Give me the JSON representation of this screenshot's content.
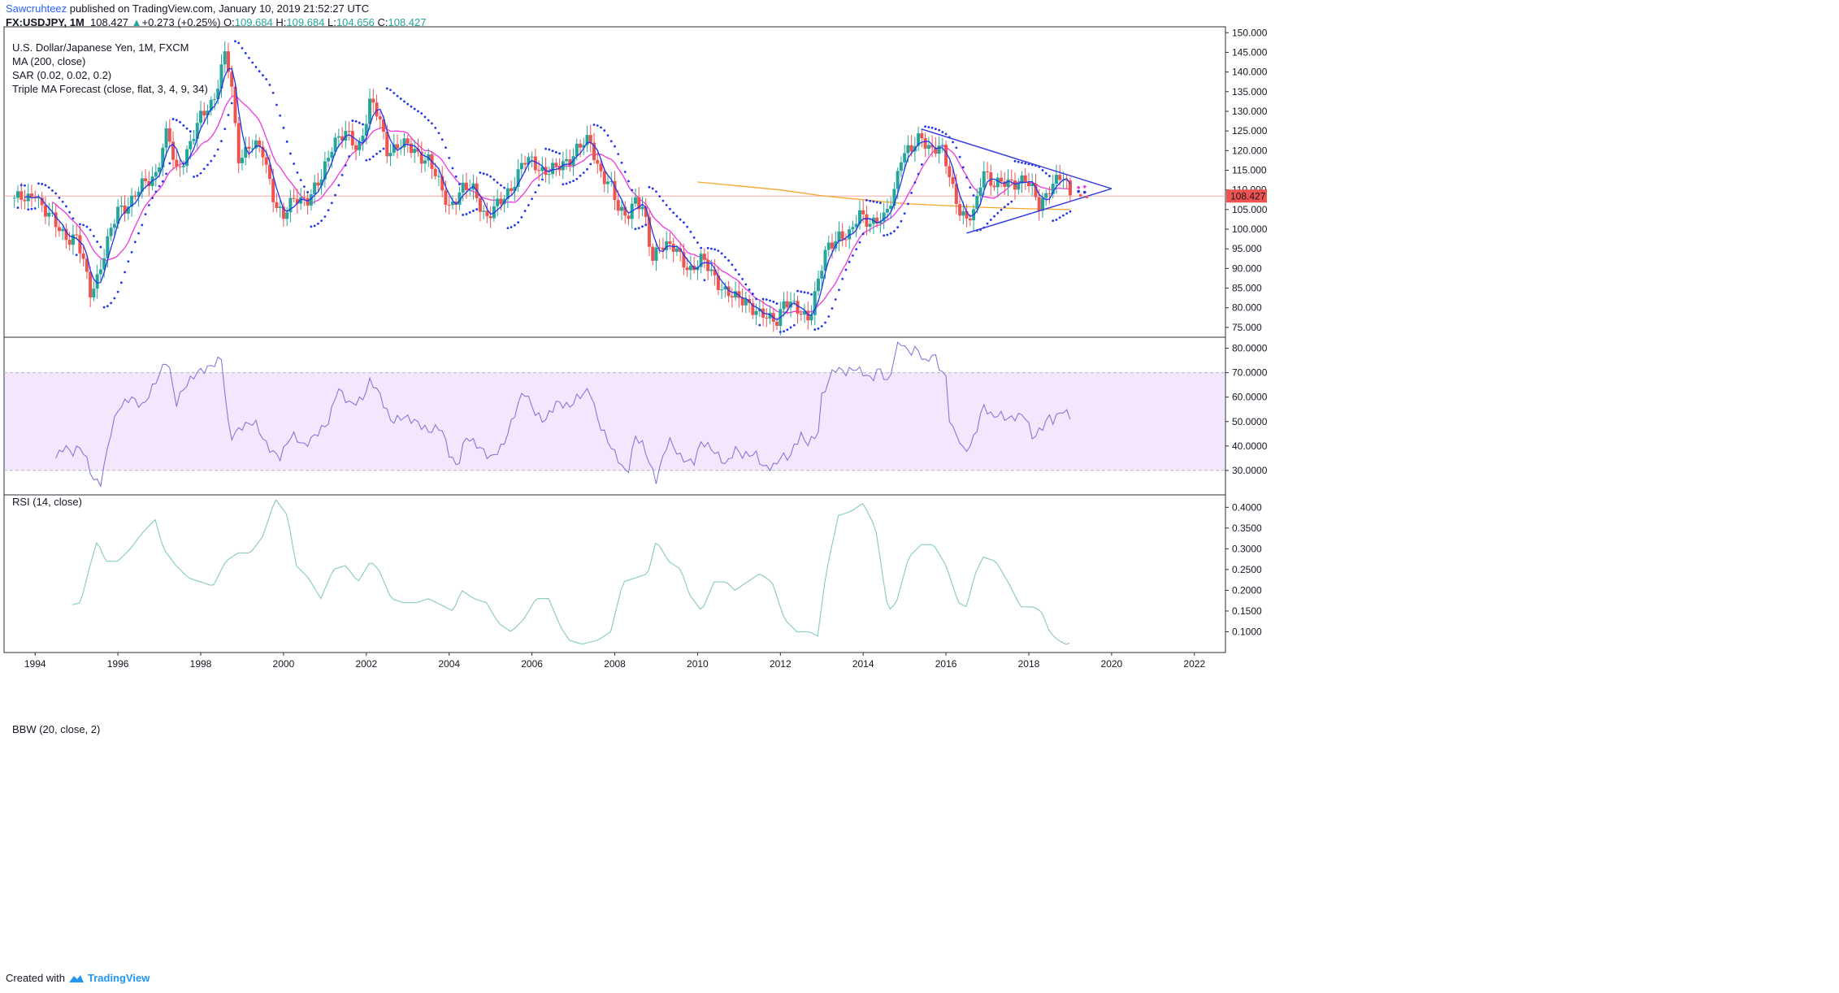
{
  "header": {
    "author": "Sawcruhteez",
    "published": " published on TradingView.com, January 10, 2019 21:52:27 UTC",
    "symbol": "FX:USDJPY, 1M",
    "last": "108.427",
    "change_arrow": "▲",
    "change": "+0.273 (+0.25%)",
    "open_label": "O:",
    "open": "109.684",
    "high_label": "H:",
    "high": "109.684",
    "low_label": "L:",
    "low": "104.656",
    "close_label": "C:",
    "close": "108.427"
  },
  "legend": {
    "title": "U.S. Dollar/Japanese Yen, 1M, FXCM",
    "ma": "MA (200, close)",
    "sar": "SAR (0.02, 0.02, 0.2)",
    "forecast": "Triple MA Forecast (close, flat, 3, 4, 9, 34)",
    "rsi": "RSI (14, close)",
    "bbw": "BBW (20, close, 2)"
  },
  "footer": {
    "created": "Created with",
    "brand": "TradingView"
  },
  "colors": {
    "up": "#26a69a",
    "down": "#ef5350",
    "ma200": "#f7a52b",
    "ma_fast": "#2136e8",
    "ma_slow": "#ee37e0",
    "sar": "#2136e8",
    "rsi": "#7b6fd6",
    "rsi_band": "#f3e6fd",
    "bbw": "#8dcdc4",
    "triangle": "#3a3fe0",
    "price_tag": "#ef5350"
  },
  "chart_data": [
    {
      "type": "candlestick",
      "title": "U.S. Dollar/Japanese Yen, 1M, FXCM",
      "x_ticks": [
        "1994",
        "1996",
        "1998",
        "2000",
        "2002",
        "2004",
        "2006",
        "2008",
        "2010",
        "2012",
        "2014",
        "2016",
        "2018",
        "2020",
        "2022"
      ],
      "y_ticks": [
        "150.000",
        "145.000",
        "140.000",
        "135.000",
        "130.000",
        "125.000",
        "120.000",
        "115.000",
        "110.000",
        "105.000",
        "100.000",
        "95.000",
        "90.000",
        "85.000",
        "80.000",
        "75.000"
      ],
      "ylim": [
        72.5,
        151.5
      ],
      "xlim": [
        1993.25,
        2022.75
      ],
      "last_price_label": "108.427",
      "close_anchors": [
        [
          1993.5,
          108
        ],
        [
          1993.8,
          107
        ],
        [
          1994.0,
          110
        ],
        [
          1994.2,
          105
        ],
        [
          1994.5,
          101
        ],
        [
          1994.8,
          98
        ],
        [
          1995.0,
          97.5
        ],
        [
          1995.2,
          90
        ],
        [
          1995.33,
          84
        ],
        [
          1995.5,
          88
        ],
        [
          1995.8,
          98
        ],
        [
          1996.0,
          105
        ],
        [
          1996.3,
          107
        ],
        [
          1996.6,
          111
        ],
        [
          1996.9,
          114
        ],
        [
          1997.2,
          125
        ],
        [
          1997.4,
          114
        ],
        [
          1997.7,
          121
        ],
        [
          1998.0,
          128
        ],
        [
          1998.3,
          133
        ],
        [
          1998.6,
          145
        ],
        [
          1998.75,
          135
        ],
        [
          1998.9,
          118
        ],
        [
          1999.2,
          122
        ],
        [
          1999.5,
          119
        ],
        [
          1999.8,
          107
        ],
        [
          2000.0,
          103
        ],
        [
          2000.3,
          108
        ],
        [
          2000.6,
          108
        ],
        [
          2000.9,
          112
        ],
        [
          2001.2,
          123
        ],
        [
          2001.5,
          124
        ],
        [
          2001.8,
          120
        ],
        [
          2002.1,
          133
        ],
        [
          2002.3,
          128
        ],
        [
          2002.5,
          120
        ],
        [
          2002.8,
          122
        ],
        [
          2003.1,
          120
        ],
        [
          2003.5,
          118
        ],
        [
          2003.8,
          110
        ],
        [
          2004.0,
          106
        ],
        [
          2004.3,
          110
        ],
        [
          2004.6,
          110
        ],
        [
          2004.9,
          103
        ],
        [
          2005.2,
          106
        ],
        [
          2005.5,
          111
        ],
        [
          2005.8,
          117
        ],
        [
          2006.0,
          117
        ],
        [
          2006.3,
          115
        ],
        [
          2006.6,
          115
        ],
        [
          2006.9,
          118
        ],
        [
          2007.1,
          121
        ],
        [
          2007.4,
          122
        ],
        [
          2007.6,
          116
        ],
        [
          2007.9,
          111
        ],
        [
          2008.1,
          104
        ],
        [
          2008.3,
          104
        ],
        [
          2008.5,
          108
        ],
        [
          2008.7,
          104
        ],
        [
          2008.9,
          92
        ],
        [
          2009.1,
          97
        ],
        [
          2009.4,
          95
        ],
        [
          2009.8,
          90
        ],
        [
          2010.1,
          92
        ],
        [
          2010.4,
          88
        ],
        [
          2010.7,
          84
        ],
        [
          2010.9,
          82
        ],
        [
          2011.2,
          82
        ],
        [
          2011.5,
          78
        ],
        [
          2011.7,
          77
        ],
        [
          2011.9,
          77
        ],
        [
          2012.1,
          82
        ],
        [
          2012.4,
          79
        ],
        [
          2012.7,
          78
        ],
        [
          2012.9,
          86
        ],
        [
          2013.1,
          94
        ],
        [
          2013.4,
          99
        ],
        [
          2013.7,
          98
        ],
        [
          2013.9,
          104
        ],
        [
          2014.2,
          102
        ],
        [
          2014.5,
          102
        ],
        [
          2014.75,
          110
        ],
        [
          2014.9,
          119
        ],
        [
          2015.2,
          120
        ],
        [
          2015.4,
          124
        ],
        [
          2015.6,
          121
        ],
        [
          2015.9,
          120
        ],
        [
          2016.1,
          113
        ],
        [
          2016.3,
          106
        ],
        [
          2016.5,
          102
        ],
        [
          2016.7,
          104
        ],
        [
          2016.9,
          116
        ],
        [
          2017.1,
          112
        ],
        [
          2017.3,
          111
        ],
        [
          2017.6,
          112
        ],
        [
          2017.9,
          113
        ],
        [
          2018.1,
          109
        ],
        [
          2018.25,
          106
        ],
        [
          2018.5,
          111
        ],
        [
          2018.8,
          113
        ],
        [
          2018.95,
          110
        ],
        [
          2019.05,
          108.4
        ]
      ],
      "ma200_anchors": [
        [
          2010.0,
          112
        ],
        [
          2011.0,
          111
        ],
        [
          2012.0,
          110
        ],
        [
          2013.0,
          108.5
        ],
        [
          2014.0,
          107.5
        ],
        [
          2015.0,
          106.5
        ],
        [
          2016.0,
          106
        ],
        [
          2017.0,
          105.5
        ],
        [
          2018.0,
          105.2
        ],
        [
          2019.0,
          105
        ]
      ],
      "triangle": {
        "apex": [
          2020.0,
          110.3
        ],
        "upper_start": [
          2015.4,
          125.5
        ],
        "lower_start": [
          2016.5,
          99.0
        ]
      },
      "forecast_dots": [
        [
          2019.2,
          110.6
        ],
        [
          2019.35,
          110.8
        ],
        [
          2019.2,
          109.6
        ],
        [
          2019.35,
          109.4
        ],
        [
          2019.25,
          108.6
        ],
        [
          2019.4,
          108.2
        ]
      ]
    },
    {
      "type": "line",
      "title": "RSI (14, close)",
      "y_ticks": [
        "80.0000",
        "70.0000",
        "60.0000",
        "50.0000",
        "40.0000",
        "30.0000"
      ],
      "ylim": [
        20,
        84.5
      ],
      "band": [
        30,
        70
      ],
      "anchors": [
        [
          1994.5,
          35
        ],
        [
          1994.7,
          40
        ],
        [
          1994.9,
          37
        ],
        [
          1995.1,
          40
        ],
        [
          1995.3,
          32
        ],
        [
          1995.4,
          26
        ],
        [
          1995.6,
          25
        ],
        [
          1995.8,
          44
        ],
        [
          1996.0,
          55
        ],
        [
          1996.3,
          60
        ],
        [
          1996.6,
          56
        ],
        [
          1996.9,
          66
        ],
        [
          1997.2,
          76
        ],
        [
          1997.4,
          57
        ],
        [
          1997.6,
          64
        ],
        [
          1997.9,
          70
        ],
        [
          1998.2,
          72
        ],
        [
          1998.5,
          76
        ],
        [
          1998.7,
          43
        ],
        [
          1999.0,
          48
        ],
        [
          1999.3,
          50
        ],
        [
          1999.6,
          40
        ],
        [
          1999.9,
          35
        ],
        [
          2000.2,
          45
        ],
        [
          2000.5,
          40
        ],
        [
          2000.8,
          45
        ],
        [
          2001.1,
          50
        ],
        [
          2001.3,
          64
        ],
        [
          2001.6,
          57
        ],
        [
          2001.9,
          59
        ],
        [
          2002.1,
          67
        ],
        [
          2002.3,
          62
        ],
        [
          2002.6,
          50
        ],
        [
          2002.9,
          52
        ],
        [
          2003.2,
          50
        ],
        [
          2003.5,
          46
        ],
        [
          2003.8,
          48
        ],
        [
          2004.0,
          37
        ],
        [
          2004.2,
          31
        ],
        [
          2004.4,
          44
        ],
        [
          2004.7,
          40
        ],
        [
          2005.0,
          35
        ],
        [
          2005.3,
          40
        ],
        [
          2005.6,
          54
        ],
        [
          2005.8,
          63
        ],
        [
          2006.1,
          53
        ],
        [
          2006.3,
          50
        ],
        [
          2006.6,
          58
        ],
        [
          2006.9,
          56
        ],
        [
          2007.1,
          60
        ],
        [
          2007.4,
          63
        ],
        [
          2007.6,
          50
        ],
        [
          2007.9,
          40
        ],
        [
          2008.1,
          34
        ],
        [
          2008.3,
          28
        ],
        [
          2008.5,
          44
        ],
        [
          2008.7,
          40
        ],
        [
          2008.9,
          30
        ],
        [
          2009.0,
          26
        ],
        [
          2009.3,
          43
        ],
        [
          2009.6,
          35
        ],
        [
          2009.9,
          33
        ],
        [
          2010.1,
          42
        ],
        [
          2010.4,
          38
        ],
        [
          2010.7,
          32
        ],
        [
          2010.9,
          39
        ],
        [
          2011.1,
          36
        ],
        [
          2011.4,
          37
        ],
        [
          2011.6,
          31
        ],
        [
          2011.9,
          32
        ],
        [
          2012.0,
          36
        ],
        [
          2012.2,
          35
        ],
        [
          2012.5,
          45
        ],
        [
          2012.6,
          41
        ],
        [
          2012.9,
          44
        ],
        [
          2013.0,
          60
        ],
        [
          2013.3,
          72
        ],
        [
          2013.6,
          70
        ],
        [
          2013.8,
          72
        ],
        [
          2014.0,
          70
        ],
        [
          2014.2,
          67
        ],
        [
          2014.4,
          72
        ],
        [
          2014.6,
          65
        ],
        [
          2014.8,
          80
        ],
        [
          2014.9,
          83
        ],
        [
          2015.1,
          78
        ],
        [
          2015.3,
          80
        ],
        [
          2015.5,
          74
        ],
        [
          2015.7,
          78
        ],
        [
          2015.9,
          70
        ],
        [
          2016.0,
          68
        ],
        [
          2016.1,
          48
        ],
        [
          2016.3,
          44
        ],
        [
          2016.4,
          38
        ],
        [
          2016.6,
          40
        ],
        [
          2016.8,
          50
        ],
        [
          2016.9,
          57
        ],
        [
          2017.1,
          52
        ],
        [
          2017.3,
          53
        ],
        [
          2017.5,
          51
        ],
        [
          2017.7,
          52
        ],
        [
          2017.9,
          53
        ],
        [
          2018.1,
          43
        ],
        [
          2018.3,
          47
        ],
        [
          2018.5,
          52
        ],
        [
          2018.6,
          50
        ],
        [
          2018.8,
          55
        ],
        [
          2019.0,
          52
        ],
        [
          2019.05,
          46
        ]
      ]
    },
    {
      "type": "line",
      "title": "BBW (20, close, 2)",
      "y_ticks": [
        "0.4000",
        "0.3500",
        "0.3000",
        "0.2500",
        "0.2000",
        "0.1500",
        "0.1000"
      ],
      "ylim": [
        0.05,
        0.43
      ],
      "anchors": [
        [
          1994.9,
          0.165
        ],
        [
          1995.1,
          0.17
        ],
        [
          1995.3,
          0.25
        ],
        [
          1995.5,
          0.32
        ],
        [
          1995.7,
          0.27
        ],
        [
          1996.0,
          0.27
        ],
        [
          1996.3,
          0.3
        ],
        [
          1996.6,
          0.34
        ],
        [
          1996.9,
          0.37
        ],
        [
          1997.1,
          0.3
        ],
        [
          1997.4,
          0.26
        ],
        [
          1997.7,
          0.23
        ],
        [
          1998.0,
          0.22
        ],
        [
          1998.3,
          0.21
        ],
        [
          1998.6,
          0.27
        ],
        [
          1998.9,
          0.29
        ],
        [
          1999.2,
          0.29
        ],
        [
          1999.5,
          0.33
        ],
        [
          1999.8,
          0.42
        ],
        [
          2000.1,
          0.38
        ],
        [
          2000.3,
          0.26
        ],
        [
          2000.6,
          0.23
        ],
        [
          2000.9,
          0.18
        ],
        [
          2001.2,
          0.25
        ],
        [
          2001.5,
          0.26
        ],
        [
          2001.8,
          0.22
        ],
        [
          2002.1,
          0.27
        ],
        [
          2002.3,
          0.25
        ],
        [
          2002.6,
          0.18
        ],
        [
          2002.9,
          0.17
        ],
        [
          2003.2,
          0.17
        ],
        [
          2003.5,
          0.18
        ],
        [
          2003.9,
          0.16
        ],
        [
          2004.1,
          0.15
        ],
        [
          2004.3,
          0.2
        ],
        [
          2004.6,
          0.18
        ],
        [
          2004.9,
          0.17
        ],
        [
          2005.2,
          0.12
        ],
        [
          2005.5,
          0.1
        ],
        [
          2005.8,
          0.13
        ],
        [
          2006.1,
          0.18
        ],
        [
          2006.4,
          0.18
        ],
        [
          2006.7,
          0.11
        ],
        [
          2006.9,
          0.08
        ],
        [
          2007.2,
          0.07
        ],
        [
          2007.6,
          0.08
        ],
        [
          2007.9,
          0.1
        ],
        [
          2008.2,
          0.22
        ],
        [
          2008.5,
          0.23
        ],
        [
          2008.8,
          0.24
        ],
        [
          2009.0,
          0.32
        ],
        [
          2009.3,
          0.27
        ],
        [
          2009.6,
          0.25
        ],
        [
          2009.8,
          0.19
        ],
        [
          2010.1,
          0.15
        ],
        [
          2010.4,
          0.22
        ],
        [
          2010.7,
          0.22
        ],
        [
          2010.9,
          0.2
        ],
        [
          2011.2,
          0.22
        ],
        [
          2011.5,
          0.24
        ],
        [
          2011.8,
          0.22
        ],
        [
          2012.1,
          0.13
        ],
        [
          2012.4,
          0.1
        ],
        [
          2012.7,
          0.1
        ],
        [
          2012.9,
          0.09
        ],
        [
          2013.1,
          0.24
        ],
        [
          2013.4,
          0.38
        ],
        [
          2013.7,
          0.39
        ],
        [
          2014.0,
          0.41
        ],
        [
          2014.3,
          0.35
        ],
        [
          2014.6,
          0.15
        ],
        [
          2014.8,
          0.17
        ],
        [
          2015.1,
          0.28
        ],
        [
          2015.4,
          0.31
        ],
        [
          2015.7,
          0.31
        ],
        [
          2016.0,
          0.26
        ],
        [
          2016.3,
          0.17
        ],
        [
          2016.5,
          0.16
        ],
        [
          2016.7,
          0.24
        ],
        [
          2016.9,
          0.28
        ],
        [
          2017.2,
          0.27
        ],
        [
          2017.5,
          0.22
        ],
        [
          2017.8,
          0.16
        ],
        [
          2018.1,
          0.16
        ],
        [
          2018.3,
          0.15
        ],
        [
          2018.5,
          0.1
        ],
        [
          2018.7,
          0.08
        ],
        [
          2018.9,
          0.07
        ],
        [
          2019.05,
          0.075
        ]
      ]
    }
  ]
}
